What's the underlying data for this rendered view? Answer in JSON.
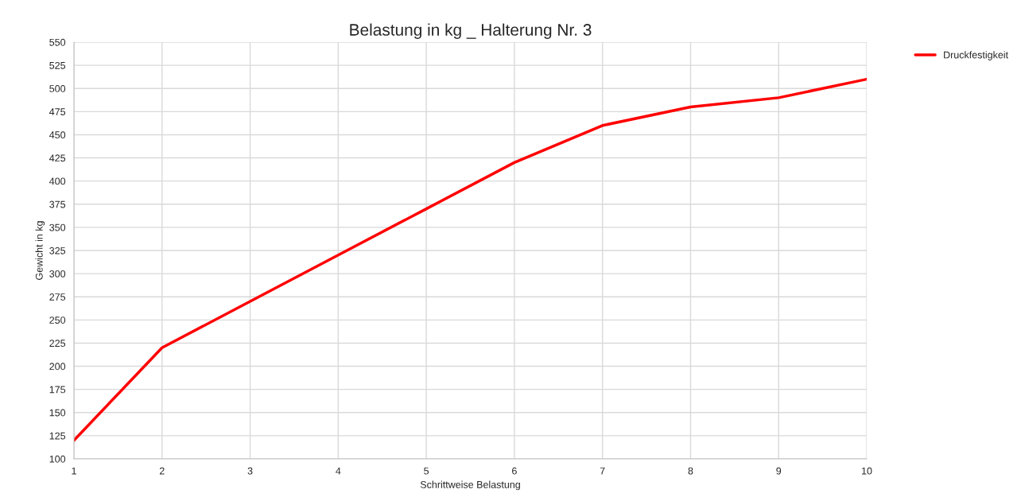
{
  "chart_data": {
    "type": "line",
    "title": "Belastung in kg _ Halterung Nr. 3",
    "xlabel": "Schrittweise Belastung",
    "ylabel": "Gewicht in kg",
    "x": [
      1,
      2,
      3,
      4,
      5,
      6,
      7,
      8,
      9,
      10
    ],
    "series": [
      {
        "name": "Druckfestigkeit",
        "color": "#ff0000",
        "values": [
          120,
          220,
          270,
          320,
          370,
          420,
          460,
          480,
          490,
          510
        ]
      }
    ],
    "xlim": [
      1,
      10
    ],
    "xticks": [
      1,
      2,
      3,
      4,
      5,
      6,
      7,
      8,
      9,
      10
    ],
    "ylim": [
      100,
      550
    ],
    "yticks": [
      100,
      125,
      150,
      175,
      200,
      225,
      250,
      275,
      300,
      325,
      350,
      375,
      400,
      425,
      450,
      475,
      500,
      525,
      550
    ],
    "grid": true,
    "legend": "top right",
    "marker": "none",
    "line_style": "solid"
  }
}
